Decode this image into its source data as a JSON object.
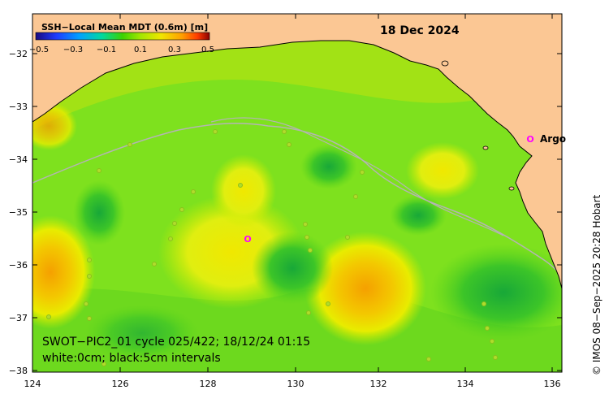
{
  "colorbar": {
    "title": "SSH−Local Mean MDT (0.6m) [m]",
    "ticks": [
      "−0.5",
      "−0.3",
      "−0.1",
      "0.1",
      "0.3",
      "0.5"
    ],
    "colors": [
      "#1a0a80",
      "#1e3cff",
      "#00a0ff",
      "#00d8a0",
      "#3cd200",
      "#a0e600",
      "#f0e600",
      "#ffa000",
      "#ff3c00",
      "#8a0000"
    ]
  },
  "date": "18 Dec 2024",
  "argo_label": "Argo",
  "argo_marker": "O",
  "caption": {
    "line1": "SWOT−PIC2_01 cycle 025/422; 18/12/24 01:15",
    "line2": "white:0cm; black:5cm intervals"
  },
  "credit": "© IMOS 08−Sep−2025 20:28 Hobart",
  "axes": {
    "x_ticks": [
      "124",
      "126",
      "128",
      "130",
      "132",
      "134",
      "136"
    ],
    "y_ticks": [
      "−32",
      "−33",
      "−34",
      "−35",
      "−36",
      "−37",
      "−38"
    ]
  },
  "colors": {
    "land": "#fbc794",
    "ocean_base": "#7ee11e",
    "warm_anomaly": "#f0e000",
    "hot_anomaly": "#f5a000",
    "cool_anomaly": "#28c030",
    "argo": "#ff00ff",
    "shelf_contour": "#b4b4b4"
  }
}
